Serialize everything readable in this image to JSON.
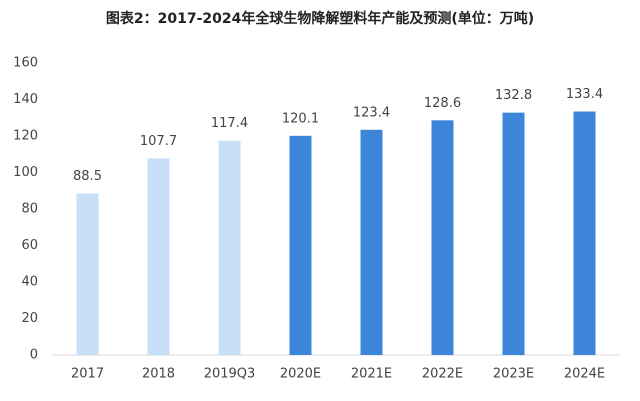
{
  "chart_data": {
    "type": "bar",
    "title": "图表2：2017-2024年全球生物降解塑料年产能及预测(单位：万吨)",
    "categories": [
      "2017",
      "2018",
      "2019Q3",
      "2020E",
      "2021E",
      "2022E",
      "2023E",
      "2024E"
    ],
    "values": [
      88.5,
      107.7,
      117.4,
      120.1,
      123.4,
      128.6,
      132.8,
      133.4
    ],
    "colors": [
      "#c7e0f8",
      "#c7e0f8",
      "#c7e0f8",
      "#3d85d8",
      "#3d85d8",
      "#3d85d8",
      "#3d85d8",
      "#3d85d8"
    ],
    "ylim": [
      0,
      160
    ],
    "yticks": [
      0,
      20,
      40,
      60,
      80,
      100,
      120,
      140,
      160
    ],
    "grid": false
  }
}
